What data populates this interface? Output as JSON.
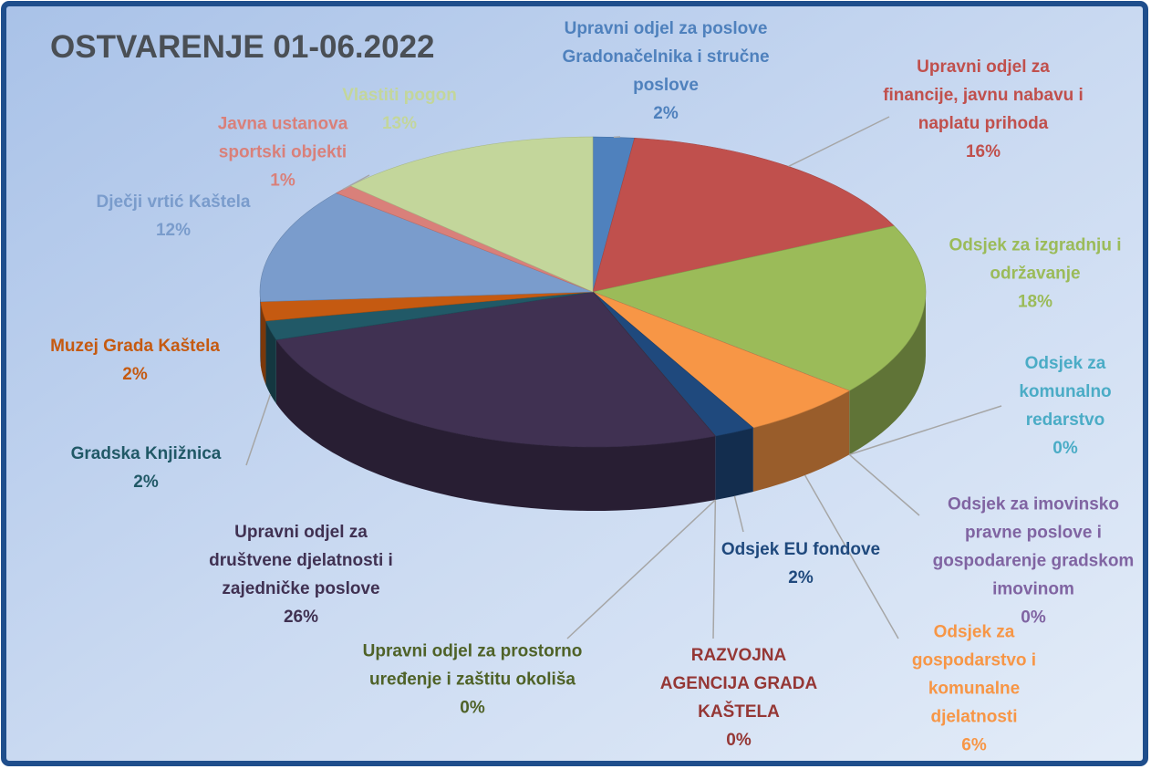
{
  "chart_data": {
    "type": "pie",
    "title": "OSTVARENJE 01-06.2022",
    "categories": [
      "Upravni odjel za poslove Gradonačelnika i stručne poslove",
      "Upravni odjel za financije, javnu nabavu i naplatu prihoda",
      "Odsjek za izgradnju i održavanje",
      "Odsjek za komunalno redarstvo",
      "Odsjek za imovinsko pravne poslove i gospodarenje gradskom imovinom",
      "Odsjek za gospodarstvo i komunalne djelatnosti",
      "Odsjek  EU fondove",
      "RAZVOJNA AGENCIJA GRADA KAŠTELA",
      "Upravni odjel za prostorno uređenje i zaštitu okoliša",
      "Upravni odjel za društvene djelatnosti i zajedničke poslove",
      "Gradska Knjižnica",
      "Muzej Grada Kaštela",
      "Dječji vrtić Kaštela",
      "Javna ustanova sportski objekti",
      "Vlastiti pogon"
    ],
    "values": [
      2,
      16,
      18,
      0,
      0,
      6,
      2,
      0,
      0,
      26,
      2,
      2,
      12,
      1,
      13
    ],
    "value_labels": [
      "2%",
      "16%",
      "18%",
      "0%",
      "0%",
      "6%",
      "2%",
      "0%",
      "0%",
      "26%",
      "2%",
      "2%",
      "12%",
      "1%",
      "13%"
    ],
    "colors": [
      "#4f81bd",
      "#c0504d",
      "#9bbb59",
      "#4bacc6",
      "#8064a2",
      "#f79646",
      "#1f497d",
      "#953735",
      "#4f6228",
      "#403152",
      "#215967",
      "#c55a11",
      "#7a9ccc",
      "#d9807a",
      "#c3d69b"
    ]
  }
}
